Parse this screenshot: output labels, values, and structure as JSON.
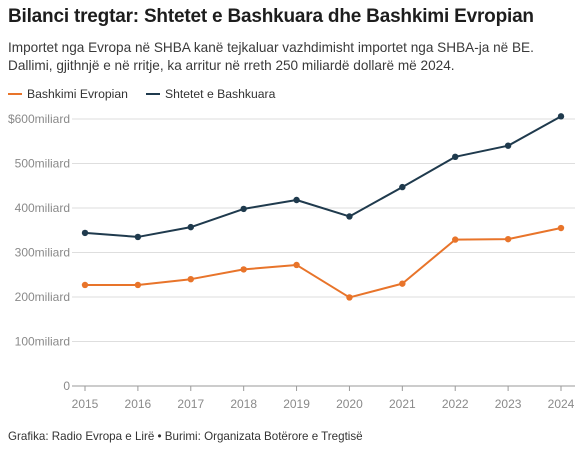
{
  "title": "Bilanci tregtar: Shtetet e Bashkuara dhe Bashkimi Evropian",
  "subtitle": "Importet nga Evropa në SHBA kanë tejkaluar vazhdimisht importet nga SHBA-ja në BE. Dallimi, gjithnjë e në rritje, ka arritur në rreth 250 miliardë dollarë më 2024.",
  "footer": "Grafika: Radio Evropa e Lirë • Burimi: Organizata Botërore e Tregtisë",
  "chart_data": {
    "type": "line",
    "x": [
      2015,
      2016,
      2017,
      2018,
      2019,
      2020,
      2021,
      2022,
      2023,
      2024
    ],
    "x_tick_labels": [
      "2015",
      "2016",
      "2017",
      "2018",
      "2019",
      "2020",
      "2021",
      "2022",
      "2023",
      "2024"
    ],
    "y_ticks": [
      0,
      100,
      200,
      300,
      400,
      500,
      600
    ],
    "y_tick_labels": [
      "0",
      "100miliard",
      "200miliard",
      "300miliard",
      "400miliard",
      "500miliard",
      "$600miliard"
    ],
    "ylim": [
      0,
      600
    ],
    "grid": true,
    "legend_position": "top-left",
    "series": [
      {
        "name": "Bashkimi Evropian",
        "color": "#e8742a",
        "values": [
          227,
          227,
          240,
          262,
          272,
          199,
          230,
          329,
          330,
          355
        ]
      },
      {
        "name": "Shtetet e Bashkuara",
        "color": "#1f3a4d",
        "values": [
          344,
          335,
          357,
          398,
          418,
          381,
          447,
          515,
          540,
          606
        ]
      }
    ]
  }
}
